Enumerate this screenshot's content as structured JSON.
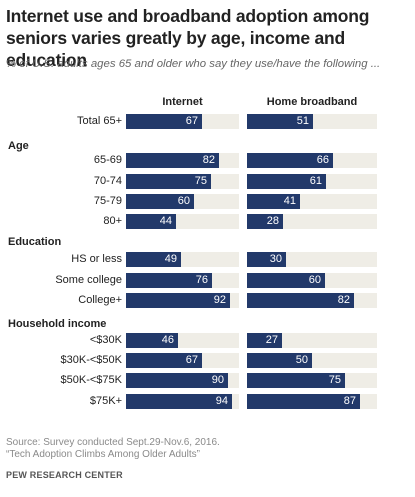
{
  "title": "Internet  use and broadband  adoption among seniors varies greatly by age, income and education",
  "subtitle": "% of U.S. adults ages 65 and older who say they use/have the following ...",
  "source_line1": "Source: Survey conducted Sept.29-Nov.6, 2016.",
  "source_line2": "“Tech Adoption Climbs Among Older Adults”",
  "publisher": "PEW RESEARCH CENTER",
  "colors": {
    "bar": "#22396a",
    "track": "#efede6"
  },
  "chart_data": {
    "type": "bar",
    "series": [
      {
        "name": "Internet",
        "values": [
          67,
          82,
          75,
          60,
          44,
          49,
          76,
          92,
          46,
          67,
          90,
          94
        ]
      },
      {
        "name": "Home broadband",
        "values": [
          51,
          66,
          61,
          41,
          28,
          30,
          60,
          82,
          27,
          50,
          75,
          87
        ]
      }
    ],
    "categories": [
      "Total 65+",
      "65-69",
      "70-74",
      "75-79",
      "80+",
      "HS or less",
      "Some college",
      "College+",
      "<$30K",
      "$30K-<$50K",
      "$50K-<$75K",
      "$75K+"
    ],
    "sections": [
      "Age",
      "Education",
      "Household income"
    ],
    "ylim": [
      0,
      100
    ]
  }
}
